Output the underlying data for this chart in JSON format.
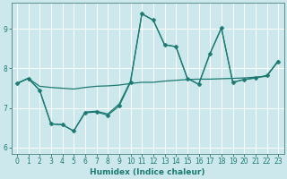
{
  "xlabel": "Humidex (Indice chaleur)",
  "bg_color": "#cce8ec",
  "grid_color": "#ffffff",
  "line_color": "#1c7a72",
  "xlim": [
    -0.5,
    23.5
  ],
  "ylim": [
    5.85,
    9.65
  ],
  "yticks": [
    6,
    7,
    8,
    9
  ],
  "xticks": [
    0,
    1,
    2,
    3,
    4,
    5,
    6,
    7,
    8,
    9,
    10,
    11,
    12,
    13,
    14,
    15,
    16,
    17,
    18,
    19,
    20,
    21,
    22,
    23
  ],
  "lines": [
    {
      "x": [
        0,
        1,
        2,
        3,
        4,
        5,
        6,
        7,
        8,
        9,
        10,
        11,
        12,
        13,
        14,
        15,
        16,
        17,
        18,
        19,
        20,
        21,
        22,
        23
      ],
      "y": [
        7.62,
        7.75,
        7.55,
        7.52,
        7.5,
        7.48,
        7.52,
        7.55,
        7.56,
        7.58,
        7.62,
        7.65,
        7.65,
        7.68,
        7.7,
        7.72,
        7.73,
        7.73,
        7.74,
        7.75,
        7.76,
        7.78,
        7.8,
        8.2
      ],
      "marker": null
    },
    {
      "x": [
        0,
        1,
        2,
        3,
        4,
        5,
        6,
        7,
        8,
        9,
        10,
        11,
        12,
        13,
        14,
        15,
        16,
        17,
        18,
        19,
        20,
        21,
        22,
        23
      ],
      "y": [
        7.62,
        7.75,
        7.45,
        6.6,
        6.58,
        6.42,
        6.88,
        6.9,
        6.82,
        7.05,
        7.65,
        9.38,
        9.22,
        8.6,
        8.55,
        7.75,
        7.6,
        8.38,
        9.02,
        7.65,
        7.72,
        7.76,
        7.82,
        8.18
      ],
      "marker": "D"
    },
    {
      "x": [
        0,
        1,
        2,
        3,
        4,
        5,
        6,
        7,
        8,
        9,
        10,
        11,
        12,
        13,
        14,
        15,
        16,
        17,
        18,
        19,
        20,
        21,
        22,
        23
      ],
      "y": [
        7.62,
        7.75,
        7.45,
        6.6,
        6.58,
        6.42,
        6.9,
        6.92,
        6.85,
        7.1,
        7.68,
        9.38,
        9.22,
        8.6,
        8.55,
        7.75,
        7.6,
        8.38,
        9.02,
        7.65,
        7.72,
        7.76,
        7.82,
        8.18
      ],
      "marker": null
    }
  ],
  "marker_size": 2.5,
  "linewidth": 0.9,
  "tick_labelsize": 5.5,
  "xlabel_fontsize": 6.5
}
